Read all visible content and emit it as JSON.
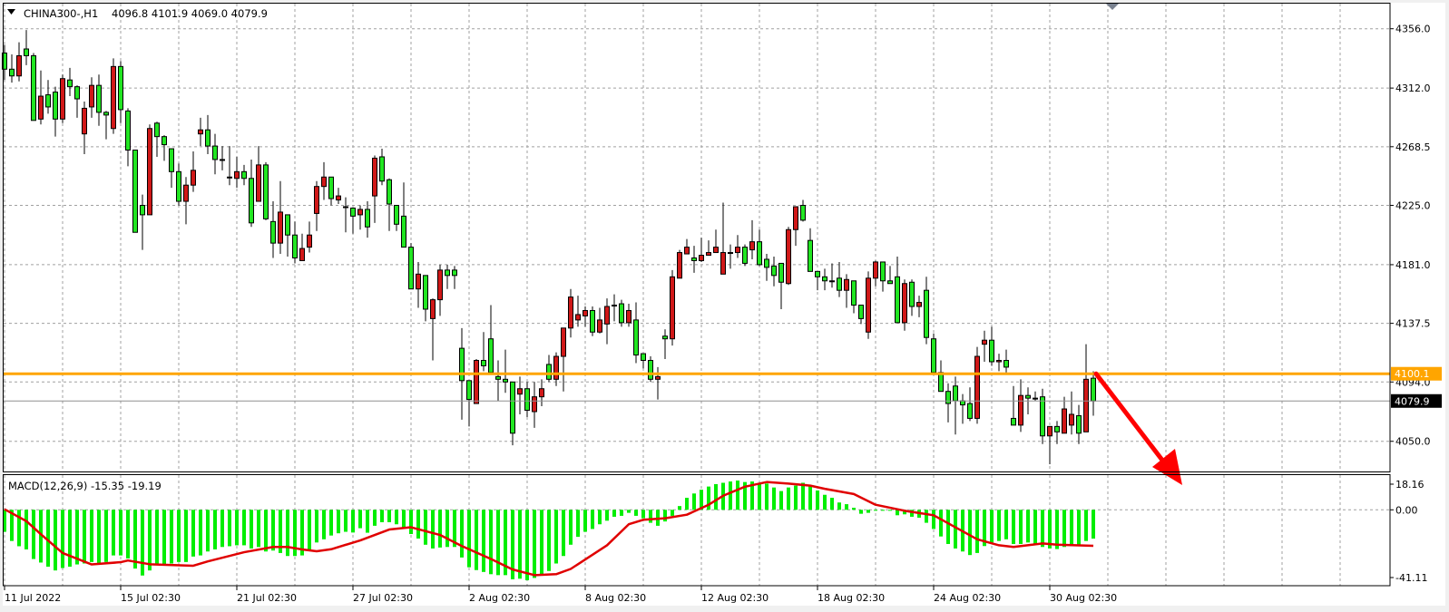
{
  "header": {
    "symbol_timeframe": "CHINA300-,H1",
    "ohlc_text": "4096.8 4101.9 4069.0 4079.9",
    "menu_icon": "triangle-down-icon"
  },
  "macd_header": {
    "label": "MACD(12,26,9) -15.35 -19.19"
  },
  "colors": {
    "bear_candle": "#22e622",
    "bull_candle": "#d01818",
    "histogram": "#00ee00",
    "signal_line": "#e00000",
    "horizontal_level": "#ffa500",
    "arrow": "#ff0000",
    "grid": "#a0a0a0"
  },
  "price_axis": {
    "ticks": [
      "4356.0",
      "4312.0",
      "4268.5",
      "4225.0",
      "4181.0",
      "4137.5",
      "4094.0",
      "4050.0"
    ],
    "level_label": "4100.1",
    "current_label": "4079.9"
  },
  "macd_axis": {
    "ticks": [
      "18.16",
      "0.00",
      "-41.11"
    ]
  },
  "time_axis": {
    "labels": [
      "11 Jul 2022",
      "15 Jul 02:30",
      "21 Jul 02:30",
      "27 Jul 02:30",
      "2 Aug 02:30",
      "8 Aug 02:30",
      "12 Aug 02:30",
      "18 Aug 02:30",
      "24 Aug 02:30",
      "30 Aug 02:30"
    ]
  },
  "chart_data": [
    {
      "type": "candlestick",
      "title": "CHINA300-,H1",
      "timeframe": "H1",
      "ylim": [
        4030,
        4362
      ],
      "yticks": [
        4356.0,
        4312.0,
        4268.5,
        4225.0,
        4181.0,
        4137.5,
        4094.0,
        4050.0
      ],
      "grid": true,
      "horizontal_level": 4100.1,
      "current_price": 4079.9,
      "annotation": "red down arrow drawn from the last candle",
      "ohlc_format": [
        "open",
        "high",
        "low",
        "close"
      ],
      "candles": [
        [
          4338,
          4344,
          4318,
          4326
        ],
        [
          4326,
          4337,
          4316,
          4321
        ],
        [
          4321,
          4346,
          4317,
          4336
        ],
        [
          4341,
          4355,
          4329,
          4336
        ],
        [
          4336,
          4338,
          4288,
          4288
        ],
        [
          4289,
          4325,
          4285,
          4306
        ],
        [
          4307,
          4318,
          4293,
          4298
        ],
        [
          4309,
          4313,
          4276,
          4289
        ],
        [
          4289,
          4322,
          4286,
          4319
        ],
        [
          4318,
          4327,
          4306,
          4313
        ],
        [
          4313,
          4314,
          4290,
          4304
        ],
        [
          4278,
          4302,
          4263,
          4297
        ],
        [
          4298,
          4320,
          4290,
          4314
        ],
        [
          4314,
          4322,
          4284,
          4294
        ],
        [
          4294,
          4295,
          4274,
          4292
        ],
        [
          4282,
          4334,
          4278,
          4328
        ],
        [
          4328,
          4332,
          4286,
          4296
        ],
        [
          4295,
          4297,
          4254,
          4266
        ],
        [
          4266,
          4266,
          4205,
          4205
        ],
        [
          4225,
          4233,
          4192,
          4218
        ],
        [
          4218,
          4285,
          4218,
          4282
        ],
        [
          4286,
          4287,
          4261,
          4276
        ],
        [
          4276,
          4277,
          4258,
          4270
        ],
        [
          4267,
          4267,
          4238,
          4250
        ],
        [
          4250,
          4256,
          4225,
          4228
        ],
        [
          4228,
          4246,
          4211,
          4240
        ],
        [
          4240,
          4265,
          4235,
          4251
        ],
        [
          4278,
          4290,
          4269,
          4281
        ],
        [
          4281,
          4292,
          4263,
          4269
        ],
        [
          4269,
          4278,
          4248,
          4259
        ],
        [
          4259,
          4269,
          4251,
          4259
        ],
        [
          4246,
          4269,
          4240,
          4246
        ],
        [
          4245,
          4261,
          4238,
          4250
        ],
        [
          4250,
          4255,
          4240,
          4245
        ],
        [
          4245,
          4259,
          4209,
          4212
        ],
        [
          4228,
          4269,
          4228,
          4255
        ],
        [
          4255,
          4257,
          4214,
          4215
        ],
        [
          4213,
          4228,
          4186,
          4197
        ],
        [
          4197,
          4243,
          4189,
          4220
        ],
        [
          4218,
          4218,
          4187,
          4203
        ],
        [
          4203,
          4213,
          4182,
          4186
        ],
        [
          4184,
          4204,
          4184,
          4193
        ],
        [
          4194,
          4213,
          4190,
          4203
        ],
        [
          4219,
          4243,
          4206,
          4239
        ],
        [
          4239,
          4257,
          4229,
          4246
        ],
        [
          4246,
          4246,
          4225,
          4230
        ],
        [
          4229,
          4238,
          4226,
          4232
        ],
        [
          4224,
          4231,
          4205,
          4224
        ],
        [
          4223,
          4223,
          4204,
          4217
        ],
        [
          4218,
          4225,
          4207,
          4222
        ],
        [
          4222,
          4228,
          4201,
          4209
        ],
        [
          4232,
          4262,
          4212,
          4260
        ],
        [
          4261,
          4267,
          4240,
          4243
        ],
        [
          4244,
          4245,
          4206,
          4226
        ],
        [
          4225,
          4225,
          4206,
          4211
        ],
        [
          4217,
          4242,
          4194,
          4194
        ],
        [
          4194,
          4197,
          4163,
          4163
        ],
        [
          4163,
          4183,
          4149,
          4174
        ],
        [
          4173,
          4173,
          4139,
          4148
        ],
        [
          4141,
          4156,
          4110,
          4155
        ],
        [
          4155,
          4181,
          4143,
          4177
        ],
        [
          4177,
          4181,
          4163,
          4173
        ],
        [
          4177,
          4180,
          4163,
          4173
        ],
        [
          4119,
          4134,
          4066,
          4095
        ],
        [
          4095,
          4095,
          4061,
          4081
        ],
        [
          4078,
          4111,
          4078,
          4110
        ],
        [
          4110,
          4131,
          4102,
          4106
        ],
        [
          4126,
          4151,
          4101,
          4101
        ],
        [
          4098,
          4110,
          4080,
          4096
        ],
        [
          4096,
          4118,
          4086,
          4094
        ],
        [
          4094,
          4094,
          4047,
          4056
        ],
        [
          4085,
          4098,
          4070,
          4089
        ],
        [
          4089,
          4094,
          4068,
          4073
        ],
        [
          4072,
          4094,
          4060,
          4083
        ],
        [
          4083,
          4096,
          4076,
          4089
        ],
        [
          4107,
          4114,
          4094,
          4096
        ],
        [
          4096,
          4116,
          4091,
          4113
        ],
        [
          4113,
          4134,
          4087,
          4134
        ],
        [
          4134,
          4163,
          4127,
          4157
        ],
        [
          4140,
          4158,
          4135,
          4144
        ],
        [
          4143,
          4150,
          4135,
          4147
        ],
        [
          4147,
          4150,
          4128,
          4131
        ],
        [
          4131,
          4149,
          4130,
          4140
        ],
        [
          4137,
          4156,
          4122,
          4150
        ],
        [
          4151,
          4159,
          4139,
          4151
        ],
        [
          4152,
          4155,
          4135,
          4138
        ],
        [
          4138,
          4152,
          4135,
          4147
        ],
        [
          4140,
          4153,
          4108,
          4114
        ],
        [
          4115,
          4115,
          4104,
          4110
        ],
        [
          4110,
          4113,
          4094,
          4096
        ],
        [
          4096,
          4105,
          4081,
          4098
        ],
        [
          4128,
          4133,
          4111,
          4126
        ],
        [
          4126,
          4177,
          4121,
          4172
        ],
        [
          4171,
          4192,
          4171,
          4190
        ],
        [
          4189,
          4200,
          4189,
          4194
        ],
        [
          4186,
          4195,
          4175,
          4184
        ],
        [
          4184,
          4201,
          4183,
          4188
        ],
        [
          4188,
          4199,
          4188,
          4190
        ],
        [
          4190,
          4207,
          4190,
          4194
        ],
        [
          4174,
          4227,
          4174,
          4190
        ],
        [
          4190,
          4196,
          4178,
          4190
        ],
        [
          4190,
          4203,
          4186,
          4194
        ],
        [
          4194,
          4196,
          4180,
          4182
        ],
        [
          4192,
          4214,
          4185,
          4198
        ],
        [
          4198,
          4207,
          4180,
          4181
        ],
        [
          4185,
          4189,
          4169,
          4179
        ],
        [
          4180,
          4187,
          4165,
          4173
        ],
        [
          4182,
          4182,
          4148,
          4168
        ],
        [
          4167,
          4209,
          4166,
          4207
        ],
        [
          4207,
          4224,
          4195,
          4224
        ],
        [
          4225,
          4229,
          4213,
          4214
        ],
        [
          4199,
          4208,
          4176,
          4176
        ],
        [
          4176,
          4176,
          4162,
          4172
        ],
        [
          4172,
          4178,
          4162,
          4169
        ],
        [
          4169,
          4182,
          4164,
          4169
        ],
        [
          4171,
          4183,
          4157,
          4162
        ],
        [
          4162,
          4174,
          4149,
          4170
        ],
        [
          4169,
          4169,
          4145,
          4151
        ],
        [
          4151,
          4151,
          4137,
          4141
        ],
        [
          4131,
          4176,
          4126,
          4171
        ],
        [
          4171,
          4184,
          4165,
          4183
        ],
        [
          4183,
          4183,
          4161,
          4169
        ],
        [
          4169,
          4180,
          4167,
          4167
        ],
        [
          4172,
          4187,
          4138,
          4138
        ],
        [
          4138,
          4170,
          4132,
          4167
        ],
        [
          4168,
          4170,
          4143,
          4150
        ],
        [
          4150,
          4158,
          4142,
          4153
        ],
        [
          4162,
          4172,
          4122,
          4127
        ],
        [
          4126,
          4130,
          4101,
          4101
        ],
        [
          4101,
          4110,
          4087,
          4087
        ],
        [
          4087,
          4093,
          4064,
          4078
        ],
        [
          4091,
          4098,
          4055,
          4080
        ],
        [
          4080,
          4085,
          4063,
          4077
        ],
        [
          4078,
          4090,
          4065,
          4067
        ],
        [
          4067,
          4120,
          4063,
          4113
        ],
        [
          4122,
          4132,
          4109,
          4125
        ],
        [
          4125,
          4135,
          4106,
          4109
        ],
        [
          4109,
          4115,
          4102,
          4110
        ],
        [
          4110,
          4118,
          4101,
          4105
        ],
        [
          4067,
          4091,
          4062,
          4062
        ],
        [
          4062,
          4096,
          4057,
          4084
        ],
        [
          4084,
          4090,
          4070,
          4082
        ],
        [
          4082,
          4087,
          4080,
          4082
        ],
        [
          4083,
          4089,
          4048,
          4054
        ],
        [
          4054,
          4061,
          4033,
          4061
        ],
        [
          4061,
          4065,
          4048,
          4057
        ],
        [
          4056,
          4083,
          4056,
          4074
        ],
        [
          4062,
          4087,
          4055,
          4070
        ],
        [
          4069,
          4077,
          4048,
          4056
        ],
        [
          4057,
          4122,
          4057,
          4096
        ],
        [
          4096.8,
          4101.9,
          4069.0,
          4079.9
        ]
      ]
    },
    {
      "type": "bar",
      "title": "MACD(12,26,9)",
      "ylim": [
        -41.11,
        18.16
      ],
      "yticks": [
        18.16,
        0.0,
        -41.11
      ],
      "main_last": -15.35,
      "signal_last": -19.19,
      "histogram": [
        -11.7,
        -16.6,
        -19.4,
        -21.1,
        -26.2,
        -28.1,
        -30.3,
        -32.3,
        -31,
        -30.3,
        -29.1,
        -28.6,
        -27.8,
        -28.3,
        -27.8,
        -24.3,
        -24.3,
        -25.9,
        -31.3,
        -35,
        -32.3,
        -29.4,
        -29.1,
        -28.6,
        -27.8,
        -27.8,
        -24.9,
        -24.3,
        -22.2,
        -21.1,
        -19.8,
        -19.4,
        -18.9,
        -18.9,
        -20.6,
        -19.8,
        -22.2,
        -21.7,
        -23,
        -24.6,
        -24.6,
        -24.3,
        -21.1,
        -17.4,
        -15.7,
        -13.7,
        -12.5,
        -11.7,
        -12.1,
        -9.8,
        -12.2,
        -8.5,
        -6.6,
        -6.6,
        -7.7,
        -9.3,
        -12.9,
        -15.3,
        -18.6,
        -20.6,
        -20.1,
        -19.8,
        -19.8,
        -25.4,
        -30.6,
        -32.1,
        -33.1,
        -34.3,
        -34.8,
        -34.8,
        -37,
        -36.7,
        -37.5,
        -36.3,
        -34.3,
        -32.6,
        -28.6,
        -24.6,
        -18.6,
        -14.4,
        -11.7,
        -10.2,
        -7.7,
        -5.8,
        -3.7,
        -3.2,
        -1.6,
        -3.2,
        -4.5,
        -6.9,
        -8.5,
        -6.2,
        -3.2,
        2,
        6.4,
        8.7,
        10.7,
        12.4,
        13.7,
        14.4,
        15.1,
        15.6,
        14.8,
        15.1,
        14,
        14,
        11.9,
        10,
        11.9,
        12.9,
        14.4,
        12.9,
        10.3,
        8,
        6.4,
        3.9,
        3,
        1.1,
        -2.1,
        -1.6,
        -0.5,
        -0.5,
        -0.5,
        -2.9,
        -2.4,
        -3.7,
        -4.2,
        -6.9,
        -10.2,
        -14.2,
        -18.2,
        -20.6,
        -22.2,
        -24.1,
        -23,
        -19.3,
        -17.4,
        -16.6,
        -15.7,
        -18.2,
        -18.2,
        -17.4,
        -18.2,
        -19.8,
        -20.6,
        -20.9,
        -19.8,
        -19.3,
        -18.6,
        -16.6,
        -15.35
      ],
      "signal_points_bar_value": [
        [
          0,
          0.3
        ],
        [
          3,
          -6
        ],
        [
          5,
          -13
        ],
        [
          8,
          -23
        ],
        [
          12,
          -29.1
        ],
        [
          16,
          -27.9
        ],
        [
          17,
          -27
        ],
        [
          20,
          -29
        ],
        [
          26,
          -29.8
        ],
        [
          28,
          -27.5
        ],
        [
          33,
          -22.6
        ],
        [
          37,
          -19.8
        ],
        [
          39,
          -19.8
        ],
        [
          41,
          -21.1
        ],
        [
          43,
          -22.1
        ],
        [
          45,
          -21
        ],
        [
          49,
          -16.3
        ],
        [
          53,
          -10.5
        ],
        [
          56,
          -9.3
        ],
        [
          60,
          -13.4
        ],
        [
          63,
          -19.3
        ],
        [
          67,
          -26.2
        ],
        [
          70,
          -31.8
        ],
        [
          73,
          -34.8
        ],
        [
          76,
          -34.3
        ],
        [
          78,
          -31.5
        ],
        [
          83,
          -18.9
        ],
        [
          86,
          -7.7
        ],
        [
          88,
          -5.3
        ],
        [
          91,
          -4.5
        ],
        [
          94,
          -2.6
        ],
        [
          97,
          2.7
        ],
        [
          99,
          7.5
        ],
        [
          102,
          12.3
        ],
        [
          105,
          14.8
        ],
        [
          108,
          14
        ],
        [
          111,
          12.9
        ],
        [
          113,
          11.2
        ],
        [
          117,
          8.4
        ],
        [
          120,
          2.7
        ],
        [
          124,
          -0.5
        ],
        [
          128,
          -2.9
        ],
        [
          131,
          -9.3
        ],
        [
          134,
          -15.7
        ],
        [
          137,
          -18.9
        ],
        [
          139,
          -19.8
        ],
        [
          143,
          -17.9
        ],
        [
          145,
          -18.6
        ],
        [
          150,
          -19.19
        ]
      ]
    }
  ]
}
